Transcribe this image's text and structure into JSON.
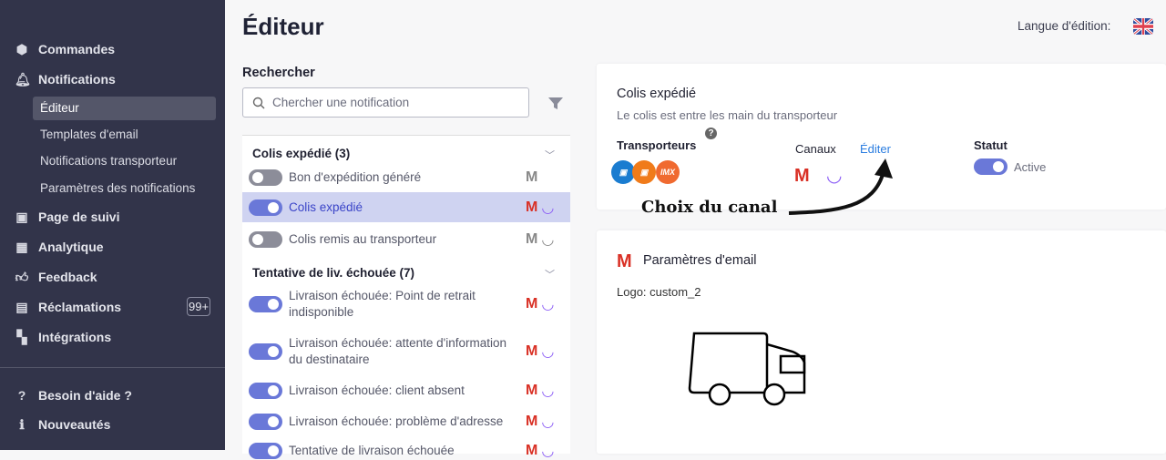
{
  "sidebar": {
    "items": [
      {
        "label": "Commandes",
        "icon": "package-icon"
      },
      {
        "label": "Notifications",
        "icon": "bell-icon"
      },
      {
        "label": "Page de suivi",
        "icon": "tracking-page-icon"
      },
      {
        "label": "Analytique",
        "icon": "chart-icon"
      },
      {
        "label": "Feedback",
        "icon": "thumbs-up-icon"
      },
      {
        "label": "Réclamations",
        "icon": "archive-icon",
        "badge": "99+"
      },
      {
        "label": "Intégrations",
        "icon": "integrations-icon"
      }
    ],
    "subitems": [
      {
        "label": "Éditeur",
        "active": true
      },
      {
        "label": "Templates d'email"
      },
      {
        "label": "Notifications transporteur"
      },
      {
        "label": "Paramètres des notifications"
      }
    ],
    "footer": [
      {
        "label": "Besoin d'aide ?",
        "icon": "help-icon"
      },
      {
        "label": "Nouveautés",
        "icon": "info-icon"
      }
    ]
  },
  "header": {
    "title": "Éditeur",
    "language_label": "Langue d'édition:",
    "language_flag": "uk-flag"
  },
  "search": {
    "label": "Rechercher",
    "placeholder": "Chercher une notification",
    "value": ""
  },
  "list": {
    "groups": [
      {
        "title": "Colis expédié (3)",
        "items": [
          {
            "label": "Bon d'expédition généré",
            "enabled": false
          },
          {
            "label": "Colis expédié",
            "enabled": true,
            "selected": true
          },
          {
            "label": "Colis remis au transporteur",
            "enabled": false
          }
        ]
      },
      {
        "title": "Tentative de liv. échouée (7)",
        "items": [
          {
            "label": "Livraison échouée: Point de retrait indisponible",
            "enabled": true
          },
          {
            "label": "Livraison échouée: attente d'information du destinataire",
            "enabled": true
          },
          {
            "label": "Livraison échouée: client absent",
            "enabled": true
          },
          {
            "label": "Livraison échouée: problème d'adresse",
            "enabled": true
          },
          {
            "label": "Tentative de livraison échouée",
            "enabled": true
          }
        ]
      }
    ]
  },
  "detail": {
    "title": "Colis expédié",
    "description": "Le colis est entre les main du transporteur",
    "carriers_label": "Transporteurs",
    "carriers": [
      "colissimo",
      "chronopost",
      "IMX"
    ],
    "channels_label": "Canaux",
    "edit_label": "Éditer",
    "status_label": "Statut",
    "status_value": "Active"
  },
  "annotation": "Choix du canal",
  "email": {
    "title": "Paramètres d'email",
    "logo_label": "Logo: custom_2"
  },
  "colors": {
    "sidebar": "#32344a",
    "accent": "#6a78d8",
    "link": "#2b7de0",
    "selected": "#cfd3f1"
  }
}
